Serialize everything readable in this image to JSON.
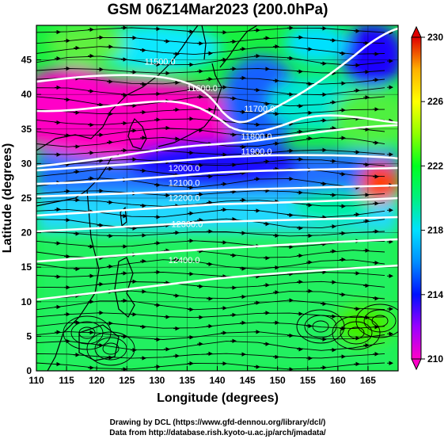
{
  "title": "GSM 06Z14Mar2023 (200.0hPa)",
  "map": {
    "lon_range": [
      110,
      170
    ],
    "lat_range": [
      0,
      50
    ],
    "x_label": "Longitude (degrees)",
    "y_label": "Latitude  (degrees)",
    "x_ticks": [
      110,
      115,
      120,
      125,
      130,
      135,
      140,
      145,
      150,
      155,
      160,
      165
    ],
    "y_ticks": [
      0,
      5,
      10,
      15,
      20,
      25,
      30,
      35,
      40,
      45
    ],
    "grid": true
  },
  "colorbar": {
    "min": 210,
    "max": 230,
    "ticks": [
      210,
      214,
      218,
      222,
      226,
      230
    ],
    "colors": [
      "#ff00c8",
      "#9a00ff",
      "#0010ff",
      "#008cff",
      "#00e0ff",
      "#00f080",
      "#00ff20",
      "#90ff00",
      "#ffff00",
      "#ffb000",
      "#ff5000",
      "#e00000"
    ]
  },
  "contours": [
    {
      "label": "11500.0",
      "lon": 130.5,
      "lat": 44.3
    },
    {
      "label": "11600.0",
      "lon": 137.5,
      "lat": 40.5
    },
    {
      "label": "11700.0",
      "lon": 147.0,
      "lat": 37.5
    },
    {
      "label": "11800.0",
      "lon": 146.5,
      "lat": 33.5
    },
    {
      "label": "11900.0",
      "lon": 146.5,
      "lat": 31.3
    },
    {
      "label": "12000.0",
      "lon": 134.5,
      "lat": 28.9
    },
    {
      "label": "12100.0",
      "lon": 134.5,
      "lat": 26.8
    },
    {
      "label": "12200.0",
      "lon": 134.5,
      "lat": 24.6
    },
    {
      "label": "12300.0",
      "lon": 135.0,
      "lat": 20.8
    },
    {
      "label": "12400.0",
      "lon": 134.5,
      "lat": 15.6
    }
  ],
  "credits": {
    "line1": "Drawing by DCL (https://www.gfd-dennou.org/library/dcl/)",
    "line2": "Data from http://database.rish.kyoto-u.ac.jp/arch/jmadata/"
  }
}
